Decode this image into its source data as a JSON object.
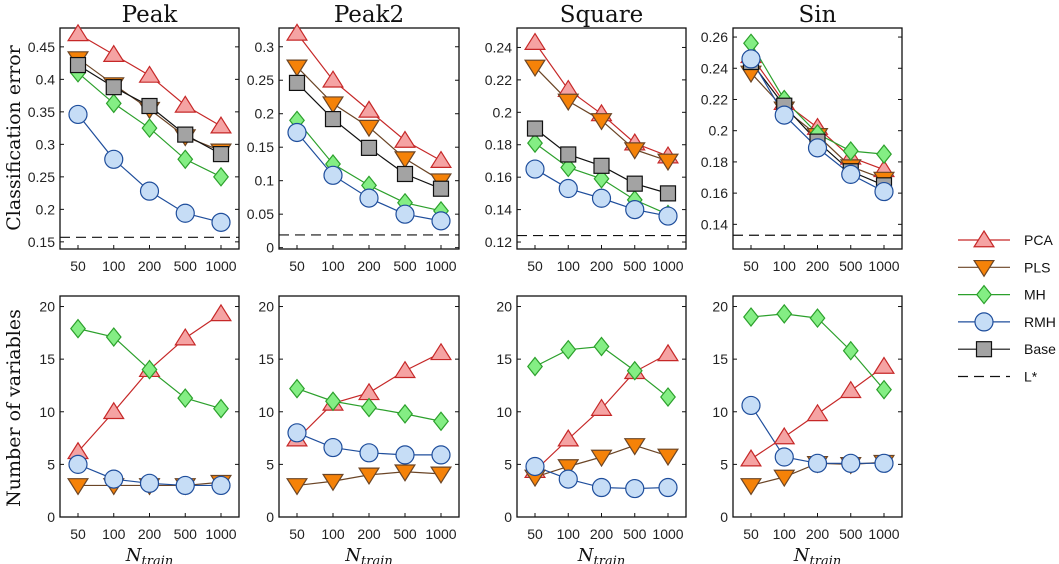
{
  "chart_data": {
    "type": "line",
    "categories": [
      "50",
      "100",
      "200",
      "500",
      "1000"
    ],
    "xlabel": "N",
    "xlabel_sub": "train",
    "row_ylabels": [
      "Classification error",
      "Number of variables"
    ],
    "series_styles": {
      "PCA": {
        "marker": "triangle-up",
        "line": "#c62828",
        "fill": "#f5a3a3"
      },
      "PLS": {
        "marker": "triangle-down",
        "line": "#6b4526",
        "fill": "#f58208"
      },
      "MH": {
        "marker": "diamond",
        "line": "#2ca02c",
        "fill": "#84ee84"
      },
      "RMH": {
        "marker": "circle",
        "line": "#1f4e9c",
        "fill": "#c6ddf6"
      },
      "Base": {
        "marker": "square",
        "line": "#111111",
        "fill": "#a3a3a3"
      },
      "L*": {
        "marker": "none",
        "line": "#111111",
        "dash": true
      }
    },
    "legend": {
      "placement": "right",
      "entries": [
        "PCA",
        "PLS",
        "MH",
        "RMH",
        "Base",
        "L*"
      ]
    },
    "grid": false,
    "panels": [
      {
        "title": "Peak",
        "row": 0,
        "ylim": [
          0.139,
          0.479
        ],
        "yticks": [
          "0.15",
          "0.2",
          "0.25",
          "0.3",
          "0.35",
          "0.4",
          "0.45"
        ],
        "lstar": 0.157,
        "series": [
          {
            "name": "PCA",
            "values": [
              0.47,
              0.438,
              0.406,
              0.36,
              0.328
            ]
          },
          {
            "name": "PLS",
            "values": [
              0.432,
              0.392,
              0.354,
              0.312,
              0.29
            ]
          },
          {
            "name": "MH",
            "values": [
              0.41,
              0.363,
              0.325,
              0.277,
              0.25
            ]
          },
          {
            "name": "RMH",
            "values": [
              0.346,
              0.277,
              0.228,
              0.194,
              0.18
            ]
          },
          {
            "name": "Base",
            "values": [
              0.422,
              0.388,
              0.359,
              0.315,
              0.285
            ]
          }
        ]
      },
      {
        "title": "Peak2",
        "row": 0,
        "ylim": [
          -0.002,
          0.328
        ],
        "yticks": [
          "0",
          "0.05",
          "0.1",
          "0.15",
          "0.2",
          "0.25",
          "0.3"
        ],
        "lstar": 0.019,
        "series": [
          {
            "name": "PCA",
            "values": [
              0.32,
              0.25,
              0.205,
              0.16,
              0.13
            ]
          },
          {
            "name": "PLS",
            "values": [
              0.27,
              0.215,
              0.18,
              0.133,
              0.1
            ]
          },
          {
            "name": "MH",
            "values": [
              0.19,
              0.125,
              0.093,
              0.067,
              0.055
            ]
          },
          {
            "name": "RMH",
            "values": [
              0.172,
              0.108,
              0.074,
              0.05,
              0.04
            ]
          },
          {
            "name": "Base",
            "values": [
              0.246,
              0.192,
              0.149,
              0.11,
              0.088
            ]
          }
        ]
      },
      {
        "title": "Square",
        "row": 0,
        "ylim": [
          0.1157,
          0.252
        ],
        "yticks": [
          "0.12",
          "0.14",
          "0.16",
          "0.18",
          "0.2",
          "0.22",
          "0.24"
        ],
        "lstar": 0.124,
        "series": [
          {
            "name": "PCA",
            "values": [
              0.243,
              0.214,
              0.199,
              0.181,
              0.173
            ]
          },
          {
            "name": "PLS",
            "values": [
              0.228,
              0.207,
              0.195,
              0.177,
              0.17
            ]
          },
          {
            "name": "MH",
            "values": [
              0.181,
              0.166,
              0.159,
              0.146,
              0.137
            ]
          },
          {
            "name": "RMH",
            "values": [
              0.165,
              0.153,
              0.147,
              0.14,
              0.136
            ]
          },
          {
            "name": "Base",
            "values": [
              0.19,
              0.174,
              0.167,
              0.156,
              0.15
            ]
          }
        ]
      },
      {
        "title": "Sin",
        "row": 0,
        "ylim": [
          0.1242,
          0.2658
        ],
        "yticks": [
          "0.14",
          "0.16",
          "0.18",
          "0.2",
          "0.22",
          "0.24",
          "0.26"
        ],
        "lstar": 0.133,
        "series": [
          {
            "name": "PCA",
            "values": [
              0.248,
              0.218,
              0.202,
              0.183,
              0.175
            ]
          },
          {
            "name": "PLS",
            "values": [
              0.237,
              0.214,
              0.197,
              0.177,
              0.169
            ]
          },
          {
            "name": "MH",
            "values": [
              0.256,
              0.22,
              0.198,
              0.187,
              0.185
            ]
          },
          {
            "name": "Base",
            "values": [
              0.244,
              0.216,
              0.193,
              0.174,
              0.165
            ]
          },
          {
            "name": "RMH",
            "values": [
              0.246,
              0.21,
              0.189,
              0.172,
              0.161
            ]
          }
        ]
      },
      {
        "title": "",
        "row": 1,
        "ylim": [
          0,
          21
        ],
        "yticks": [
          "0",
          "5",
          "10",
          "15",
          "20"
        ],
        "series": [
          {
            "name": "PCA",
            "values": [
              6.2,
              10,
              14,
              17,
              19.3
            ]
          },
          {
            "name": "MH",
            "values": [
              17.9,
              17.1,
              14,
              11.3,
              10.3
            ]
          },
          {
            "name": "PLS",
            "values": [
              3,
              3,
              3,
              3,
              3.3
            ]
          },
          {
            "name": "RMH",
            "values": [
              5,
              3.6,
              3.2,
              3,
              3
            ]
          }
        ]
      },
      {
        "title": "",
        "row": 1,
        "ylim": [
          0,
          21
        ],
        "yticks": [
          "0",
          "5",
          "10",
          "15",
          "20"
        ],
        "series": [
          {
            "name": "PCA",
            "values": [
              7.4,
              10.8,
              11.8,
              13.9,
              15.6
            ]
          },
          {
            "name": "MH",
            "values": [
              12.2,
              11,
              10.4,
              9.8,
              9.1
            ]
          },
          {
            "name": "PLS",
            "values": [
              3,
              3.4,
              4,
              4.3,
              4.1
            ]
          },
          {
            "name": "RMH",
            "values": [
              8,
              6.6,
              6.1,
              5.9,
              5.9
            ]
          }
        ]
      },
      {
        "title": "",
        "row": 1,
        "ylim": [
          0,
          21
        ],
        "yticks": [
          "0",
          "5",
          "10",
          "15",
          "20"
        ],
        "series": [
          {
            "name": "PCA",
            "values": [
              4.4,
              7.4,
              10.3,
              13.8,
              15.5
            ]
          },
          {
            "name": "MH",
            "values": [
              14.3,
              15.9,
              16.2,
              13.9,
              11.4
            ]
          },
          {
            "name": "PLS",
            "values": [
              3.8,
              4.8,
              5.7,
              6.8,
              5.8
            ]
          },
          {
            "name": "RMH",
            "values": [
              4.8,
              3.6,
              2.8,
              2.7,
              2.8
            ]
          }
        ]
      },
      {
        "title": "",
        "row": 1,
        "ylim": [
          0,
          21
        ],
        "yticks": [
          "0",
          "5",
          "10",
          "15",
          "20"
        ],
        "series": [
          {
            "name": "PCA",
            "values": [
              5.5,
              7.6,
              9.8,
              12,
              14.3
            ]
          },
          {
            "name": "MH",
            "values": [
              19,
              19.3,
              18.9,
              15.8,
              12.1
            ]
          },
          {
            "name": "PLS",
            "values": [
              3,
              3.8,
              5.1,
              5,
              5.2
            ]
          },
          {
            "name": "RMH",
            "values": [
              10.6,
              5.7,
              5.1,
              5.1,
              5.1
            ]
          }
        ]
      }
    ]
  }
}
